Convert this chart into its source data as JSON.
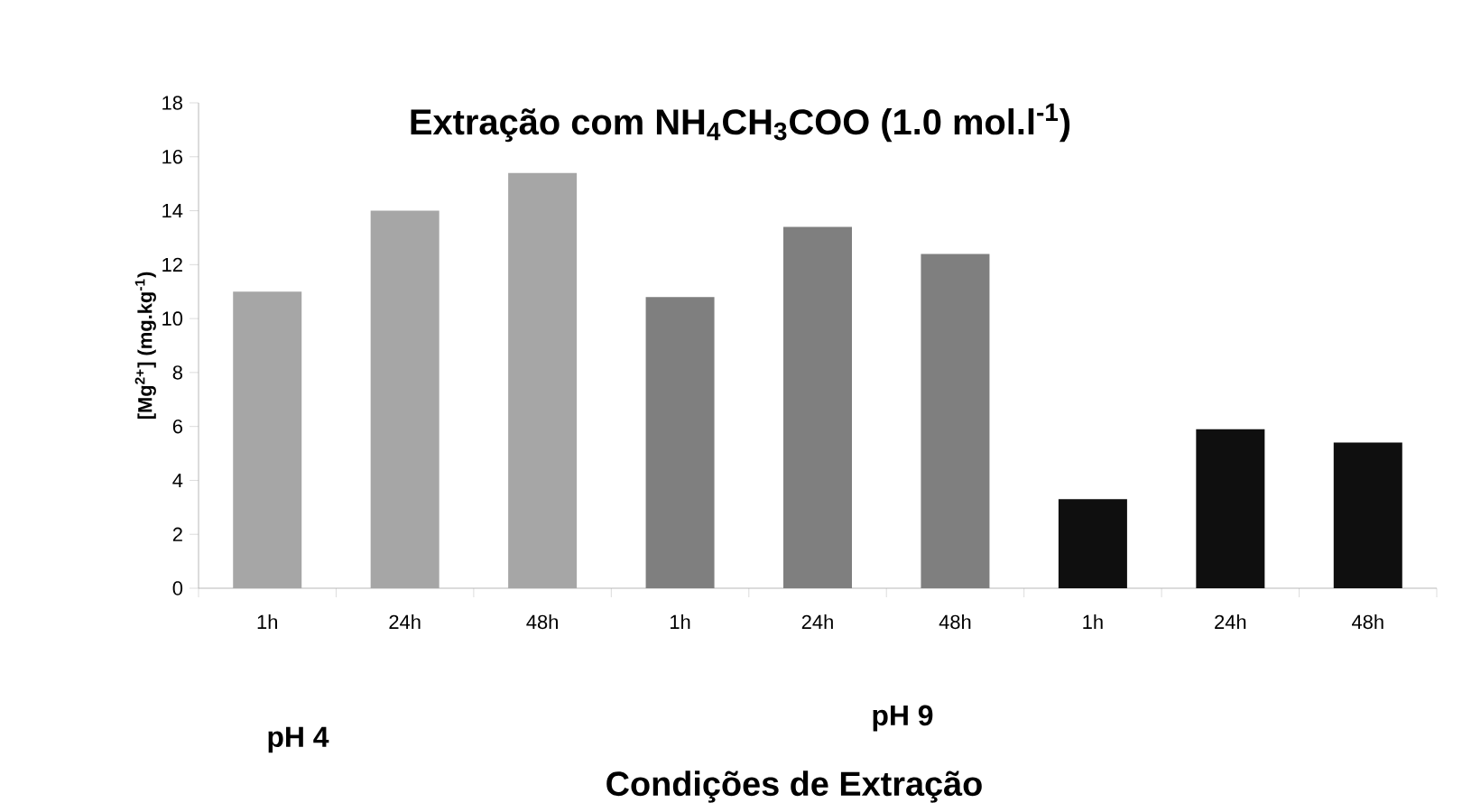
{
  "chart_data": {
    "type": "bar",
    "title": "Extração com NH$_{4}$CH$_{3}$COO (1.0 mol.l$^{-1}$)",
    "ylabel": "[Mg$^{2+}$] (mg.kg$^{-1}$)",
    "categories": [
      "1h",
      "24h",
      "48h",
      "1h",
      "24h",
      "48h",
      "1h",
      "24h",
      "48h"
    ],
    "values": [
      11.0,
      14.0,
      15.4,
      10.8,
      13.4,
      12.4,
      3.3,
      5.9,
      5.4
    ],
    "colors": [
      "#a6a6a6",
      "#a6a6a6",
      "#a6a6a6",
      "#7f7f7f",
      "#7f7f7f",
      "#7f7f7f",
      "#0f0f0f",
      "#0f0f0f",
      "#0f0f0f"
    ],
    "ylim": [
      0,
      18
    ],
    "yticks": [
      0,
      2,
      4,
      6,
      8,
      10,
      12,
      14,
      16,
      18
    ],
    "annotations": [
      "pH 4",
      "pH 9",
      "Condições de Extração"
    ],
    "grid": false
  }
}
